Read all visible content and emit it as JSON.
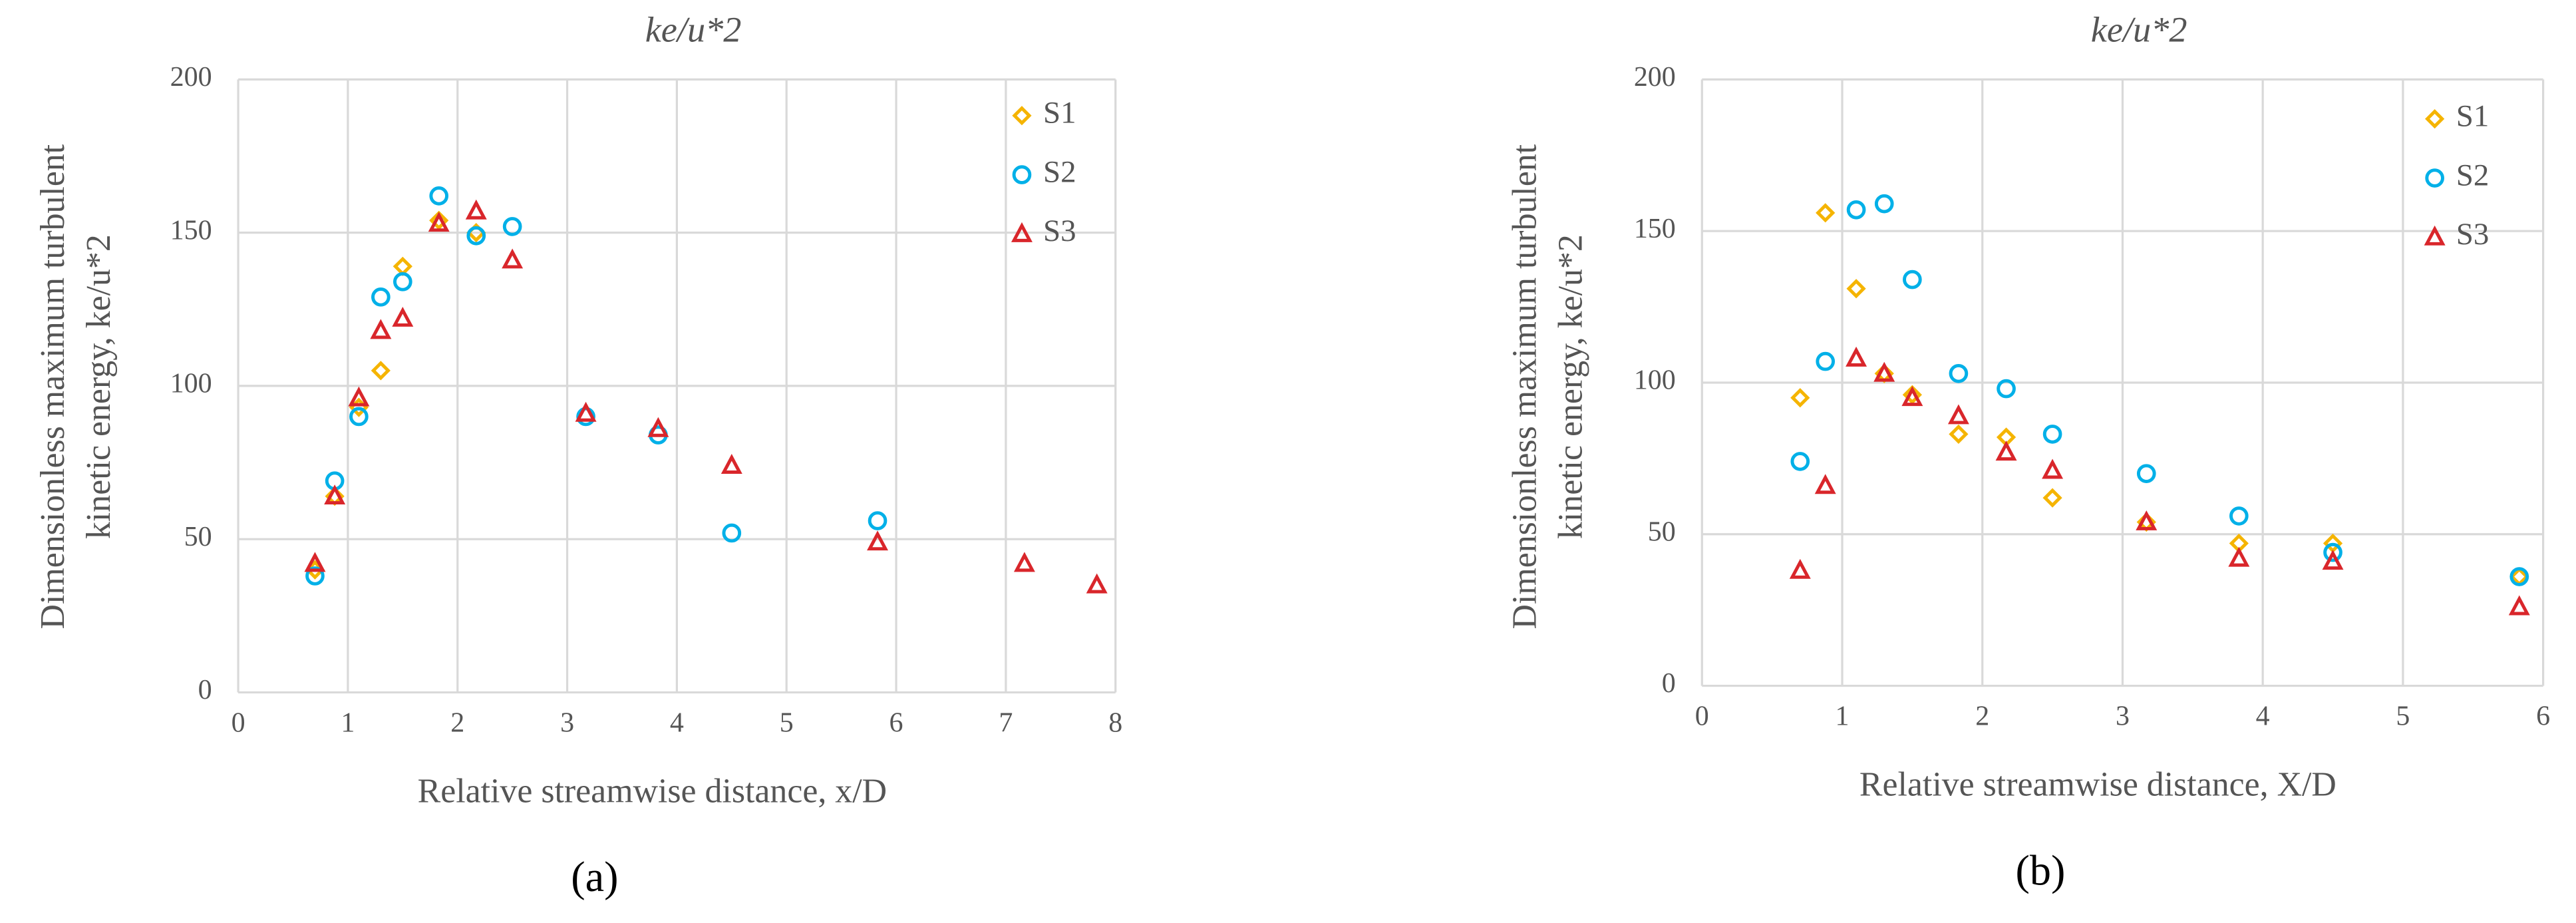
{
  "chart_data": [
    {
      "type": "scatter",
      "title": "ke/u*2",
      "panel_label": "(a)",
      "xlabel": "Relative streamwise distance, x/D",
      "ylabel": [
        "Dimensionless maximum turbulent",
        "kinetic energy, ke/u*2"
      ],
      "xlim": [
        0,
        8
      ],
      "xticks": [
        0,
        1,
        2,
        3,
        4,
        5,
        6,
        7,
        8
      ],
      "ylim": [
        0,
        200
      ],
      "yticks": [
        0,
        50,
        100,
        150,
        200
      ],
      "grid": true,
      "legend": "top-right",
      "series": [
        {
          "name": "S1",
          "color": "#f5b400",
          "marker": "diamond",
          "x": [
            0.7,
            0.88,
            1.1,
            1.3,
            1.5,
            1.83,
            2.17
          ],
          "values": [
            40,
            64,
            93,
            105,
            139,
            154,
            150
          ]
        },
        {
          "name": "S2",
          "color": "#00b0e8",
          "marker": "circle",
          "x": [
            0.7,
            0.88,
            1.1,
            1.3,
            1.5,
            1.83,
            2.17,
            2.5,
            3.17,
            3.83,
            4.5,
            5.83
          ],
          "values": [
            38,
            69,
            90,
            129,
            134,
            162,
            149,
            152,
            90,
            84,
            52,
            56
          ]
        },
        {
          "name": "S3",
          "color": "#d9262b",
          "marker": "triangle",
          "x": [
            0.7,
            0.88,
            1.1,
            1.3,
            1.5,
            1.83,
            2.17,
            2.5,
            3.17,
            3.83,
            4.5,
            5.83,
            7.17,
            7.83
          ],
          "values": [
            42,
            64,
            96,
            118,
            122,
            153,
            157,
            141,
            91,
            86,
            74,
            49,
            42,
            35
          ]
        }
      ]
    },
    {
      "type": "scatter",
      "title": "ke/u*2",
      "panel_label": "(b)",
      "xlabel": "Relative streamwise distance, X/D",
      "ylabel": [
        "Dimensionless maximum turbulent",
        "kinetic energy, ke/u*2"
      ],
      "xlim": [
        0,
        6
      ],
      "xticks": [
        0,
        1,
        2,
        3,
        4,
        5,
        6
      ],
      "ylim": [
        0,
        200
      ],
      "yticks": [
        0,
        50,
        100,
        150,
        200
      ],
      "grid": true,
      "legend": "top-right",
      "series": [
        {
          "name": "S1",
          "color": "#f5b400",
          "marker": "diamond",
          "x": [
            0.7,
            0.88,
            1.1,
            1.3,
            1.5,
            1.83,
            2.17,
            2.5,
            3.17,
            3.83,
            4.5,
            5.83
          ],
          "values": [
            95,
            156,
            131,
            103,
            96,
            83,
            82,
            62,
            54,
            47,
            47,
            36
          ]
        },
        {
          "name": "S2",
          "color": "#00b0e8",
          "marker": "circle",
          "x": [
            0.7,
            0.88,
            1.1,
            1.3,
            1.5,
            1.83,
            2.17,
            2.5,
            3.17,
            3.83,
            4.5,
            5.83
          ],
          "values": [
            74,
            107,
            157,
            159,
            134,
            103,
            98,
            83,
            70,
            56,
            44,
            36
          ]
        },
        {
          "name": "S3",
          "color": "#d9262b",
          "marker": "triangle",
          "x": [
            0.7,
            0.88,
            1.1,
            1.3,
            1.5,
            1.83,
            2.17,
            2.5,
            3.17,
            3.83,
            4.5,
            5.83
          ],
          "values": [
            38,
            66,
            108,
            103,
            95,
            89,
            77,
            71,
            54,
            42,
            41,
            26
          ]
        }
      ]
    }
  ]
}
